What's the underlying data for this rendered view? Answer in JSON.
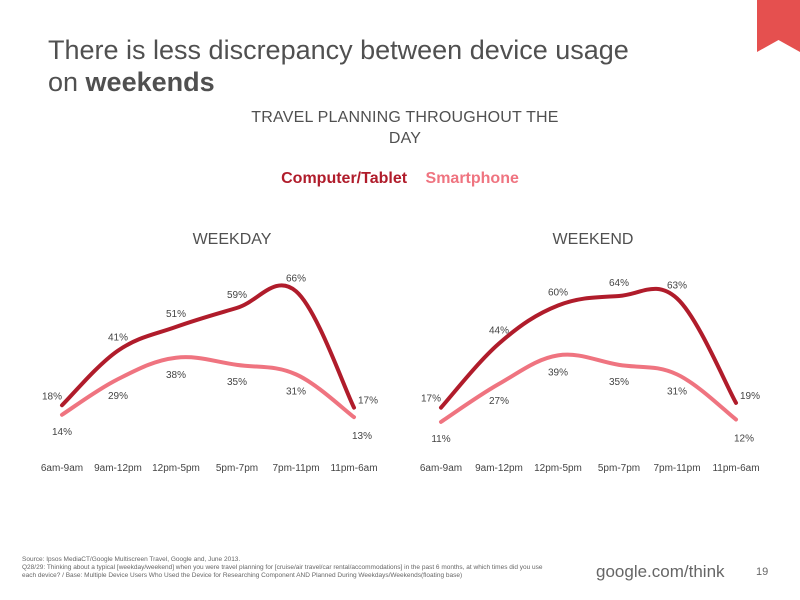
{
  "title": {
    "line1": "There is less discrepancy between device usage",
    "line2_pre": "on ",
    "line2_bold": "weekends"
  },
  "subtitle": {
    "line1": "TRAVEL PLANNING THROUGHOUT THE",
    "line2": "DAY"
  },
  "legend": {
    "series1": "Computer/Tablet",
    "series2": "Smartphone"
  },
  "colors": {
    "series1": "#b01c2b",
    "series2": "#ef7480",
    "accent": "#e5504f"
  },
  "chart_data": [
    {
      "type": "line",
      "title": "WEEKDAY",
      "categories": [
        "6am-9am",
        "9am-12pm",
        "12pm-5pm",
        "5pm-7pm",
        "7pm-11pm",
        "11pm-6am"
      ],
      "series": [
        {
          "name": "Computer/Tablet",
          "values": [
            18,
            41,
            51,
            59,
            66,
            17
          ],
          "labels": [
            "18%",
            "41%",
            "51%",
            "59%",
            "66%",
            "17%"
          ]
        },
        {
          "name": "Smartphone",
          "values": [
            14,
            29,
            38,
            35,
            31,
            13
          ],
          "labels": [
            "14%",
            "29%",
            "38%",
            "35%",
            "31%",
            "13%"
          ]
        }
      ],
      "ylim": [
        0,
        80
      ]
    },
    {
      "type": "line",
      "title": "WEEKEND",
      "categories": [
        "6am-9am",
        "9am-12pm",
        "12pm-5pm",
        "5pm-7pm",
        "7pm-11pm",
        "11pm-6am"
      ],
      "series": [
        {
          "name": "Computer/Tablet",
          "values": [
            17,
            44,
            60,
            64,
            63,
            19
          ],
          "labels": [
            "17%",
            "44%",
            "60%",
            "64%",
            "63%",
            "19%"
          ]
        },
        {
          "name": "Smartphone",
          "values": [
            11,
            27,
            39,
            35,
            31,
            12
          ],
          "labels": [
            "11%",
            "27%",
            "39%",
            "35%",
            "31%",
            "12%"
          ]
        }
      ],
      "ylim": [
        0,
        80
      ]
    }
  ],
  "footer": {
    "source": "Source: Ipsos MediaCT/Google Multiscreen Travel, Google and, June 2013.",
    "question1": "Q28/29: Thinking about a typical [weekday/weekend] when you were travel planning for [cruise/air travel/car rental/accommodations] in the past 6 months, at which times did you use",
    "question2": "each device? / Base: Multiple Device Users  Who Used the Device for Researching Component AND Planned During Weekdays/Weekends(floating base)",
    "brand": "google.com/think",
    "page": "19"
  }
}
